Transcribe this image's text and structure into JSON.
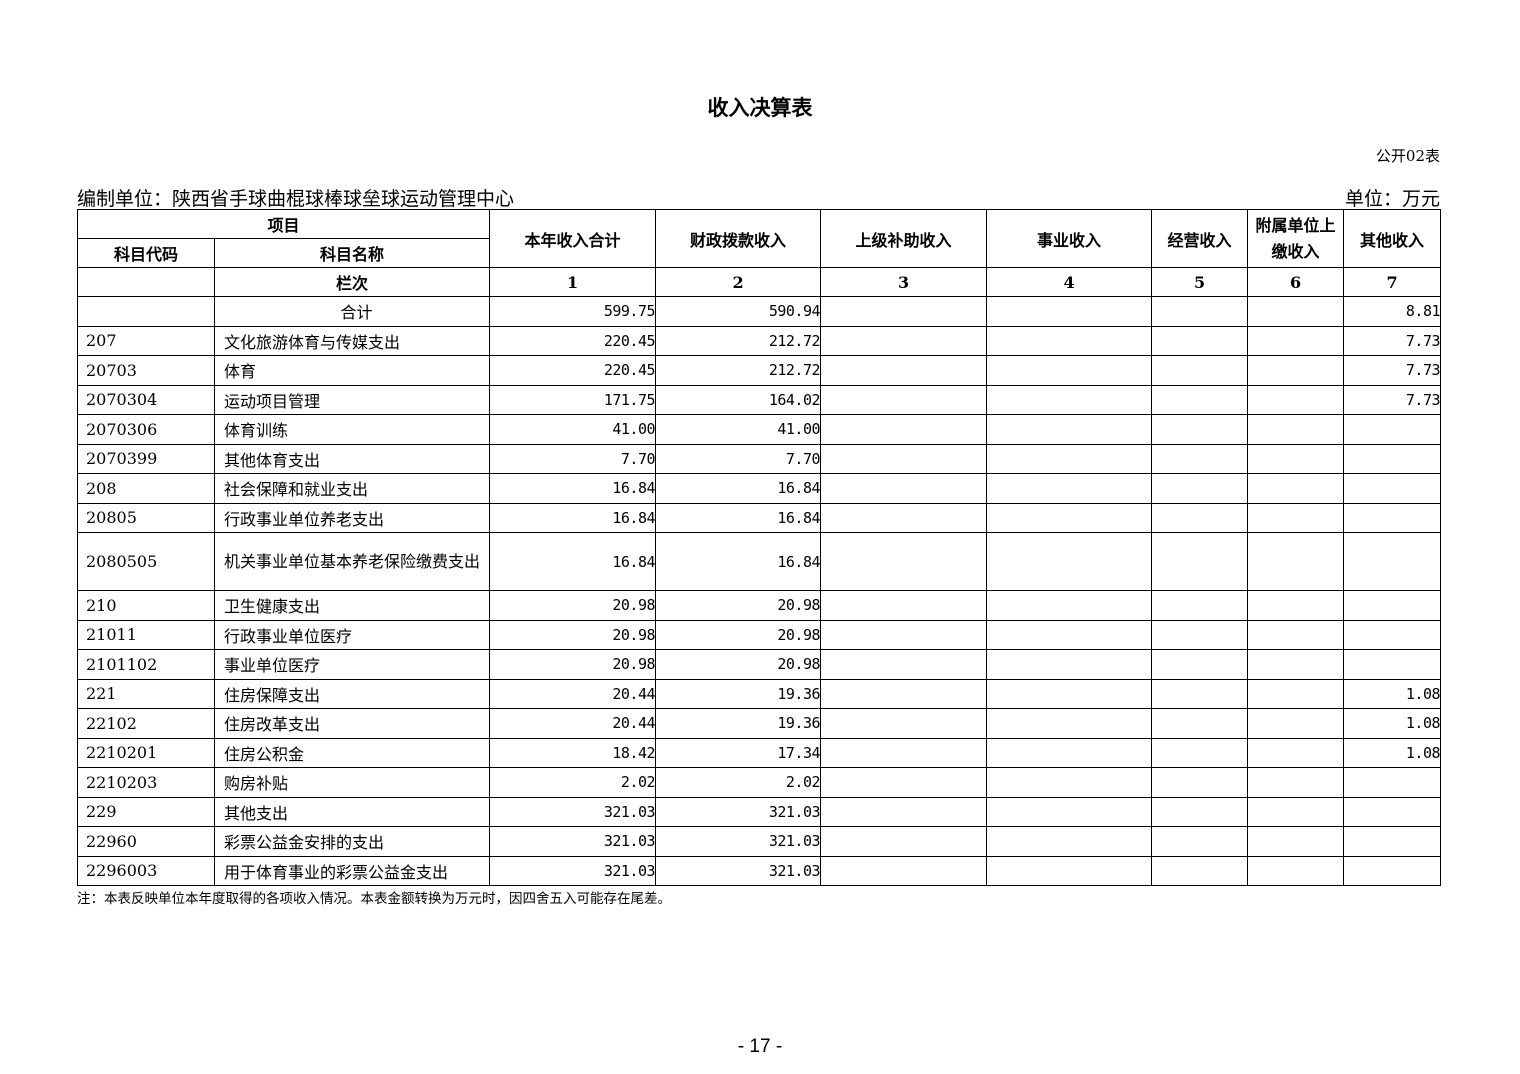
{
  "title": "收入决算表",
  "form_no": "公开02表",
  "org": "编制单位：陕西省手球曲棍球棒球垒球运动管理中心",
  "unit": "单位：万元",
  "headers": {
    "project": "项目",
    "code": "科目代码",
    "name": "科目名称",
    "lanci": "栏次",
    "cols": [
      "本年收入合计",
      "财政拨款收入",
      "上级补助收入",
      "事业收入",
      "经营收入",
      "附属单位上缴收入",
      "其他收入"
    ],
    "col_nums": [
      "1",
      "2",
      "3",
      "4",
      "5",
      "6",
      "7"
    ]
  },
  "rows": [
    {
      "code": "",
      "name": "合计",
      "v": [
        "599.75",
        "590.94",
        "",
        "",
        "",
        "",
        "8.81"
      ]
    },
    {
      "code": "207",
      "name": "文化旅游体育与传媒支出",
      "v": [
        "220.45",
        "212.72",
        "",
        "",
        "",
        "",
        "7.73"
      ]
    },
    {
      "code": "20703",
      "name": "体育",
      "v": [
        "220.45",
        "212.72",
        "",
        "",
        "",
        "",
        "7.73"
      ]
    },
    {
      "code": "2070304",
      "name": "运动项目管理",
      "v": [
        "171.75",
        "164.02",
        "",
        "",
        "",
        "",
        "7.73"
      ]
    },
    {
      "code": "2070306",
      "name": "体育训练",
      "v": [
        "41.00",
        "41.00",
        "",
        "",
        "",
        "",
        ""
      ]
    },
    {
      "code": "2070399",
      "name": "其他体育支出",
      "v": [
        "7.70",
        "7.70",
        "",
        "",
        "",
        "",
        ""
      ]
    },
    {
      "code": "208",
      "name": "社会保障和就业支出",
      "v": [
        "16.84",
        "16.84",
        "",
        "",
        "",
        "",
        ""
      ]
    },
    {
      "code": "20805",
      "name": "行政事业单位养老支出",
      "v": [
        "16.84",
        "16.84",
        "",
        "",
        "",
        "",
        ""
      ]
    },
    {
      "code": "2080505",
      "name": "机关事业单位基本养老保险缴费支出",
      "v": [
        "16.84",
        "16.84",
        "",
        "",
        "",
        "",
        ""
      ]
    },
    {
      "code": "210",
      "name": "卫生健康支出",
      "v": [
        "20.98",
        "20.98",
        "",
        "",
        "",
        "",
        ""
      ]
    },
    {
      "code": "21011",
      "name": "行政事业单位医疗",
      "v": [
        "20.98",
        "20.98",
        "",
        "",
        "",
        "",
        ""
      ]
    },
    {
      "code": "2101102",
      "name": "事业单位医疗",
      "v": [
        "20.98",
        "20.98",
        "",
        "",
        "",
        "",
        ""
      ]
    },
    {
      "code": "221",
      "name": "住房保障支出",
      "v": [
        "20.44",
        "19.36",
        "",
        "",
        "",
        "",
        "1.08"
      ]
    },
    {
      "code": "22102",
      "name": "住房改革支出",
      "v": [
        "20.44",
        "19.36",
        "",
        "",
        "",
        "",
        "1.08"
      ]
    },
    {
      "code": "2210201",
      "name": "住房公积金",
      "v": [
        "18.42",
        "17.34",
        "",
        "",
        "",
        "",
        "1.08"
      ]
    },
    {
      "code": "2210203",
      "name": "购房补贴",
      "v": [
        "2.02",
        "2.02",
        "",
        "",
        "",
        "",
        ""
      ]
    },
    {
      "code": "229",
      "name": "其他支出",
      "v": [
        "321.03",
        "321.03",
        "",
        "",
        "",
        "",
        ""
      ]
    },
    {
      "code": "22960",
      "name": "彩票公益金安排的支出",
      "v": [
        "321.03",
        "321.03",
        "",
        "",
        "",
        "",
        ""
      ]
    },
    {
      "code": "2296003",
      "name": "用于体育事业的彩票公益金支出",
      "v": [
        "321.03",
        "321.03",
        "",
        "",
        "",
        "",
        ""
      ]
    }
  ],
  "note": "注：本表反映单位本年度取得的各项收入情况。本表金额转换为万元时，因四舍五入可能存在尾差。",
  "page_number": "- 17 -"
}
